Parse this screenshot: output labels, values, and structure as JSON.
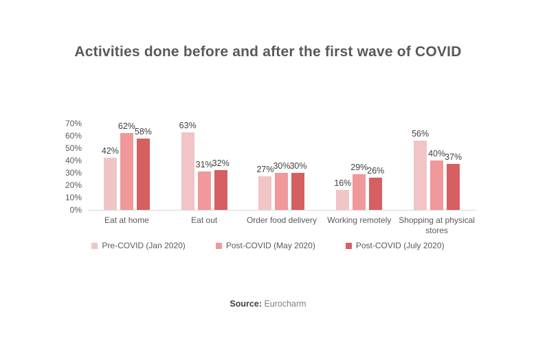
{
  "title": "Activities done before and after the first wave of COVID",
  "chart_data": {
    "type": "bar",
    "title": "Activities done before and after the first wave of COVID",
    "categories": [
      "Eat at home",
      "Eat out",
      "Order food delivery",
      "Working remotely",
      "Shopping at physical stores"
    ],
    "series": [
      {
        "name": "Pre-COVID (Jan 2020)",
        "color": "#f1c4c5",
        "values": [
          42,
          63,
          27,
          16,
          56
        ]
      },
      {
        "name": "Post-COVID (May 2020)",
        "color": "#f0989a",
        "values": [
          62,
          31,
          30,
          29,
          40
        ]
      },
      {
        "name": "Post-COVID (July 2020)",
        "color": "#d55f61",
        "values": [
          58,
          32,
          30,
          26,
          37
        ]
      }
    ],
    "xlabel": "",
    "ylabel": "",
    "ylim": [
      0,
      70
    ],
    "ytick_step": 10,
    "tick_suffix": "%",
    "value_suffix": "%",
    "grid": false,
    "legend_position": "bottom",
    "axis_color": "#d8d8d8"
  },
  "source": {
    "label": "Source:",
    "value": "Eurocharm"
  }
}
